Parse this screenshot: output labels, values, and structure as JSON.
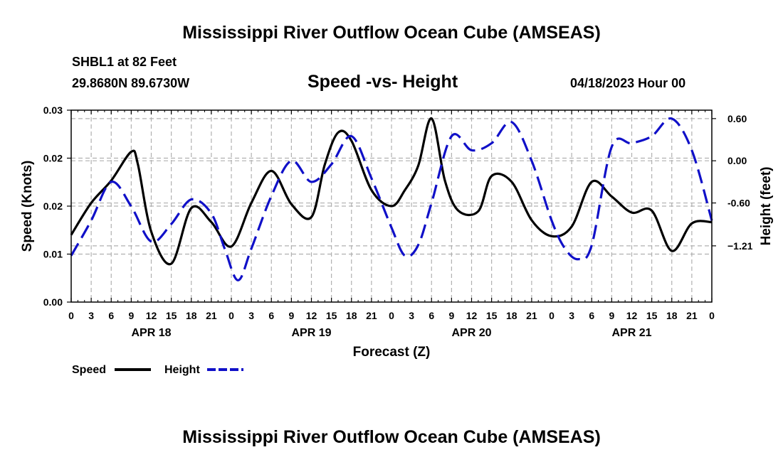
{
  "page_title": "Mississippi River Outflow Ocean Cube (AMSEAS)",
  "station": {
    "name_line": "SHBL1 at 82 Feet",
    "coords": "29.8680N  89.6730W",
    "issued": "04/18/2023 Hour 00"
  },
  "footer_title": "Mississippi River Outflow Ocean Cube (AMSEAS)",
  "colors": {
    "speed": "#000000",
    "height": "#1010c8",
    "grid": "#b0b0b0"
  },
  "chart_data": {
    "type": "line",
    "title": "Speed -vs- Height",
    "xlabel": "Forecast (Z)",
    "ylabel": "Speed (Knots)",
    "y2label": "Height (feet)",
    "grid": true,
    "legend_position": "bottom-left",
    "xlim": [
      0,
      96
    ],
    "ylim": [
      0,
      0.03
    ],
    "y2lim": [
      -2.01,
      0.72
    ],
    "x_ticks": [
      {
        "x": 0,
        "label": "0"
      },
      {
        "x": 3,
        "label": "3"
      },
      {
        "x": 6,
        "label": "6"
      },
      {
        "x": 9,
        "label": "9"
      },
      {
        "x": 12,
        "label": "12"
      },
      {
        "x": 15,
        "label": "15"
      },
      {
        "x": 18,
        "label": "18"
      },
      {
        "x": 21,
        "label": "21"
      },
      {
        "x": 24,
        "label": "0"
      },
      {
        "x": 27,
        "label": "3"
      },
      {
        "x": 30,
        "label": "6"
      },
      {
        "x": 33,
        "label": "9"
      },
      {
        "x": 36,
        "label": "12"
      },
      {
        "x": 39,
        "label": "15"
      },
      {
        "x": 42,
        "label": "18"
      },
      {
        "x": 45,
        "label": "21"
      },
      {
        "x": 48,
        "label": "0"
      },
      {
        "x": 51,
        "label": "3"
      },
      {
        "x": 54,
        "label": "6"
      },
      {
        "x": 57,
        "label": "9"
      },
      {
        "x": 60,
        "label": "12"
      },
      {
        "x": 63,
        "label": "15"
      },
      {
        "x": 66,
        "label": "18"
      },
      {
        "x": 69,
        "label": "21"
      },
      {
        "x": 72,
        "label": "0"
      },
      {
        "x": 75,
        "label": "3"
      },
      {
        "x": 78,
        "label": "6"
      },
      {
        "x": 81,
        "label": "9"
      },
      {
        "x": 84,
        "label": "12"
      },
      {
        "x": 87,
        "label": "15"
      },
      {
        "x": 90,
        "label": "18"
      },
      {
        "x": 93,
        "label": "21"
      },
      {
        "x": 96,
        "label": "0"
      }
    ],
    "day_labels": [
      {
        "x": 12,
        "label": "APR 18"
      },
      {
        "x": 36,
        "label": "APR 19"
      },
      {
        "x": 60,
        "label": "APR 20"
      },
      {
        "x": 84,
        "label": "APR 21"
      }
    ],
    "y_ticks": [
      {
        "value": 0.0,
        "label": "0.00"
      },
      {
        "value": 0.0075,
        "label": "0.01"
      },
      {
        "value": 0.015,
        "label": "0.02"
      },
      {
        "value": 0.0225,
        "label": "0.02"
      },
      {
        "value": 0.03,
        "label": "0.03"
      }
    ],
    "y2_ticks": [
      {
        "value": 0.6,
        "label": "0.60"
      },
      {
        "value": 0.0,
        "label": "0.00"
      },
      {
        "value": -0.6,
        "label": "-0.60"
      },
      {
        "value": -1.21,
        "label": "−1.21"
      }
    ],
    "series": [
      {
        "name": "Speed",
        "axis": "left",
        "style": "solid",
        "x": [
          0,
          3,
          6,
          9,
          10,
          12,
          15,
          18,
          21,
          24,
          27,
          30,
          33,
          36,
          38,
          40,
          42,
          45,
          48,
          50,
          52,
          54,
          56,
          58,
          61,
          63,
          66,
          69,
          72,
          75,
          78,
          81,
          84,
          87,
          90,
          93,
          96
        ],
        "values": [
          0.0105,
          0.0155,
          0.019,
          0.0235,
          0.0215,
          0.011,
          0.006,
          0.0147,
          0.0125,
          0.0087,
          0.0155,
          0.0205,
          0.0153,
          0.0133,
          0.0215,
          0.0265,
          0.0252,
          0.0175,
          0.015,
          0.0175,
          0.0213,
          0.0287,
          0.019,
          0.0143,
          0.0142,
          0.0197,
          0.0188,
          0.0128,
          0.0103,
          0.0118,
          0.0188,
          0.0165,
          0.014,
          0.0143,
          0.008,
          0.0123,
          0.0125
        ]
      },
      {
        "name": "Height",
        "axis": "right",
        "style": "dashed",
        "x": [
          0,
          3,
          6,
          9,
          12,
          15,
          18,
          21,
          23,
          25,
          27,
          30,
          33,
          36,
          39,
          42,
          45,
          48,
          50,
          52,
          54,
          57,
          60,
          63,
          66,
          69,
          72,
          74,
          76,
          78,
          81,
          84,
          87,
          90,
          93,
          96
        ],
        "values": [
          -1.35,
          -0.85,
          -0.3,
          -0.65,
          -1.15,
          -0.9,
          -0.55,
          -0.75,
          -1.25,
          -1.7,
          -1.25,
          -0.5,
          0.0,
          -0.3,
          -0.05,
          0.35,
          -0.25,
          -0.95,
          -1.35,
          -1.2,
          -0.6,
          0.35,
          0.15,
          0.25,
          0.55,
          0.0,
          -0.85,
          -1.25,
          -1.4,
          -1.2,
          0.2,
          0.25,
          0.35,
          0.6,
          0.15,
          -0.85
        ]
      }
    ]
  },
  "legend": [
    {
      "label": "Speed",
      "series": "Speed"
    },
    {
      "label": "Height",
      "series": "Height"
    }
  ]
}
